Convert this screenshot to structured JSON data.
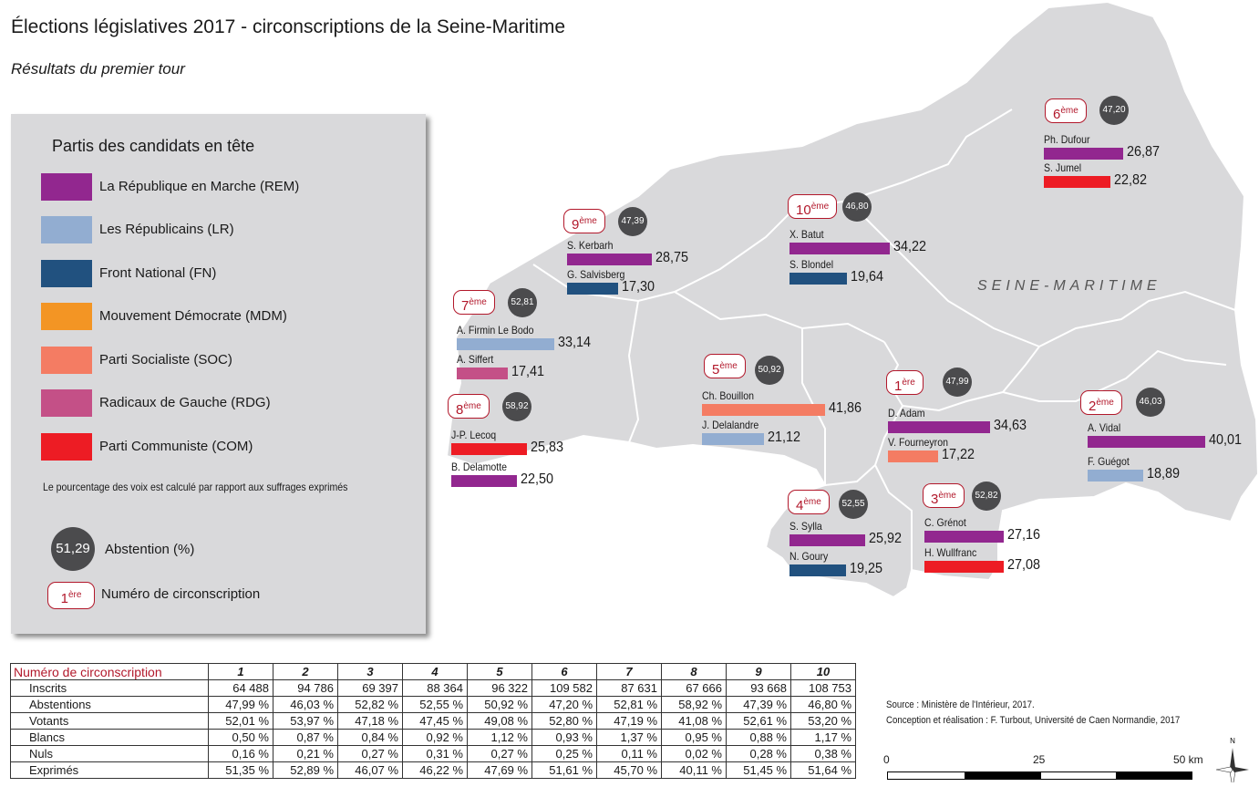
{
  "title": "Élections législatives 2017 - circonscriptions de la Seine-Maritime",
  "subtitle": "Résultats du premier tour",
  "region_label": "SEINE-MARITIME",
  "legend": {
    "title": "Partis des candidats en tête",
    "parties": [
      {
        "label": "La République en Marche (REM)",
        "color": "#92278f"
      },
      {
        "label": "Les Républicains (LR)",
        "color": "#92add1"
      },
      {
        "label": "Front National (FN)",
        "color": "#21517f"
      },
      {
        "label": "Mouvement Démocrate (MDM)",
        "color": "#f39524"
      },
      {
        "label": "Parti Socialiste (SOC)",
        "color": "#f47c63"
      },
      {
        "label": "Radicaux de Gauche (RDG)",
        "color": "#c45087"
      },
      {
        "label": "Parti Communiste (COM)",
        "color": "#ed1c24"
      }
    ],
    "note": "Le pourcentage des voix est calculé par rapport aux suffrages exprimés",
    "abstention_sample": "51,29",
    "abstention_label": "Abstention (%)",
    "circ_sample_num": "1",
    "circ_sample_sup": "ère",
    "circ_label": "Numéro de circonscription"
  },
  "circonscriptions": [
    {
      "num": "6",
      "sup": "ème",
      "abstention": "47,20",
      "candidates": [
        {
          "name": "Ph. Dufour",
          "party": "REM",
          "value": 26.87,
          "label": "26,87"
        },
        {
          "name": "S. Jumel",
          "party": "COM",
          "value": 22.82,
          "label": "22,82"
        }
      ]
    },
    {
      "num": "9",
      "sup": "ème",
      "abstention": "47,39",
      "candidates": [
        {
          "name": "S. Kerbarh",
          "party": "REM",
          "value": 28.75,
          "label": "28,75"
        },
        {
          "name": "G. Salvisberg",
          "party": "FN",
          "value": 17.3,
          "label": "17,30"
        }
      ]
    },
    {
      "num": "10",
      "sup": "ème",
      "abstention": "46,80",
      "candidates": [
        {
          "name": "X. Batut",
          "party": "REM",
          "value": 34.22,
          "label": "34,22"
        },
        {
          "name": "S. Blondel",
          "party": "FN",
          "value": 19.64,
          "label": "19,64"
        }
      ]
    },
    {
      "num": "7",
      "sup": "ème",
      "abstention": "52,81",
      "candidates": [
        {
          "name": "A. Firmin Le Bodo",
          "party": "LR",
          "value": 33.14,
          "label": "33,14"
        },
        {
          "name": "A. Siffert",
          "party": "RDG",
          "value": 17.41,
          "label": "17,41"
        }
      ]
    },
    {
      "num": "8",
      "sup": "ème",
      "abstention": "58,92",
      "candidates": [
        {
          "name": "J-P. Lecoq",
          "party": "COM",
          "value": 25.83,
          "label": "25,83"
        },
        {
          "name": "B. Delamotte",
          "party": "REM",
          "value": 22.5,
          "label": "22,50"
        }
      ]
    },
    {
      "num": "5",
      "sup": "ème",
      "abstention": "50,92",
      "candidates": [
        {
          "name": "Ch. Bouillon",
          "party": "SOC",
          "value": 41.86,
          "label": "41,86"
        },
        {
          "name": "J. Delalandre",
          "party": "LR",
          "value": 21.12,
          "label": "21,12"
        }
      ]
    },
    {
      "num": "1",
      "sup": "ère",
      "abstention": "47,99",
      "candidates": [
        {
          "name": "D. Adam",
          "party": "REM",
          "value": 34.63,
          "label": "34,63"
        },
        {
          "name": "V. Fourneyron",
          "party": "SOC",
          "value": 17.22,
          "label": "17,22"
        }
      ]
    },
    {
      "num": "2",
      "sup": "ème",
      "abstention": "46,03",
      "candidates": [
        {
          "name": "A. Vidal",
          "party": "REM",
          "value": 40.01,
          "label": "40,01"
        },
        {
          "name": "F. Guégot",
          "party": "LR",
          "value": 18.89,
          "label": "18,89"
        }
      ]
    },
    {
      "num": "4",
      "sup": "ème",
      "abstention": "52,55",
      "candidates": [
        {
          "name": "S. Sylla",
          "party": "REM",
          "value": 25.92,
          "label": "25,92"
        },
        {
          "name": "N. Goury",
          "party": "FN",
          "value": 19.25,
          "label": "19,25"
        }
      ]
    },
    {
      "num": "3",
      "sup": "ème",
      "abstention": "52,82",
      "candidates": [
        {
          "name": "C. Grénot",
          "party": "REM",
          "value": 27.16,
          "label": "27,16"
        },
        {
          "name": "H. Wullfranc",
          "party": "COM",
          "value": 27.08,
          "label": "27,08"
        }
      ]
    }
  ],
  "party_colors": {
    "REM": "#92278f",
    "LR": "#92add1",
    "FN": "#21517f",
    "MDM": "#f39524",
    "SOC": "#f47c63",
    "RDG": "#c45087",
    "COM": "#ed1c24"
  },
  "table": {
    "header_label": "Numéro de circonscription",
    "columns": [
      "1",
      "2",
      "3",
      "4",
      "5",
      "6",
      "7",
      "8",
      "9",
      "10"
    ],
    "rows": [
      {
        "label": "Inscrits",
        "values": [
          "64 488",
          "94 786",
          "69 397",
          "88 364",
          "96 322",
          "109 582",
          "87 631",
          "67 666",
          "93 668",
          "108 753"
        ]
      },
      {
        "label": "Abstentions",
        "values": [
          "47,99 %",
          "46,03 %",
          "52,82 %",
          "52,55 %",
          "50,92 %",
          "47,20 %",
          "52,81 %",
          "58,92 %",
          "47,39 %",
          "46,80 %"
        ]
      },
      {
        "label": "Votants",
        "values": [
          "52,01 %",
          "53,97 %",
          "47,18 %",
          "47,45 %",
          "49,08 %",
          "52,80 %",
          "47,19 %",
          "41,08 %",
          "52,61 %",
          "53,20 %"
        ]
      },
      {
        "label": "Blancs",
        "values": [
          "0,50 %",
          "0,87 %",
          "0,84 %",
          "0,92 %",
          "1,12 %",
          "0,93 %",
          "1,37 %",
          "0,95 %",
          "0,88 %",
          "1,17 %"
        ]
      },
      {
        "label": "Nuls",
        "values": [
          "0,16 %",
          "0,21 %",
          "0,27 %",
          "0,31 %",
          "0,27 %",
          "0,25 %",
          "0,11 %",
          "0,02 %",
          "0,28 %",
          "0,38 %"
        ]
      },
      {
        "label": "Exprimés",
        "values": [
          "51,35 %",
          "52,89 %",
          "46,07 %",
          "46,22 %",
          "47,69 %",
          "51,61 %",
          "45,70 %",
          "40,11 %",
          "51,45 %",
          "51,64 %"
        ]
      }
    ]
  },
  "source": {
    "line1": "Source : Ministère de l'Intérieur, 2017.",
    "line2": "Conception et réalisation : F. Turbout, Université de Caen Normandie, 2017"
  },
  "scale": {
    "label0": "0",
    "label25": "25",
    "label50": "50 km"
  },
  "north": "N"
}
